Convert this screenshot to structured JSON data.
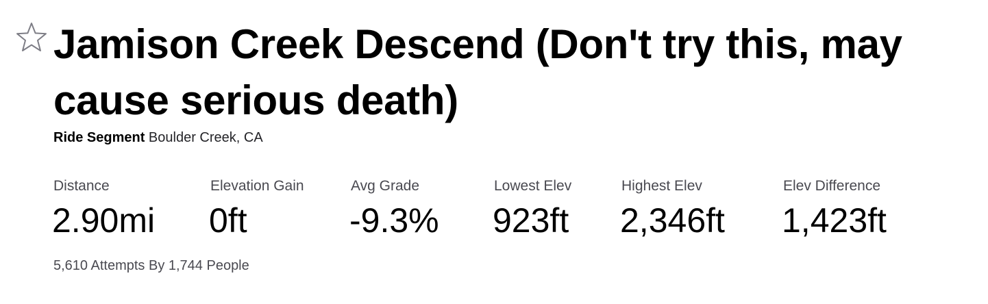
{
  "segment": {
    "title": "Jamison Creek Descend (Don't try this, may cause serious death)",
    "type": "Ride Segment",
    "location": "Boulder Creek, CA",
    "star_icon": "star-outline-icon"
  },
  "stats": [
    {
      "label": "Distance",
      "value": "2.90mi"
    },
    {
      "label": "Elevation Gain",
      "value": "0ft"
    },
    {
      "label": "Avg Grade",
      "value": "-9.3%"
    },
    {
      "label": "Lowest Elev",
      "value": "923ft"
    },
    {
      "label": "Highest Elev",
      "value": "2,346ft"
    },
    {
      "label": "Elev Difference",
      "value": "1,423ft"
    }
  ],
  "attempts_text": "5,610 Attempts By 1,744 People",
  "colors": {
    "text": "#000000",
    "muted": "#494950",
    "star_outline": "#7d7d85"
  }
}
